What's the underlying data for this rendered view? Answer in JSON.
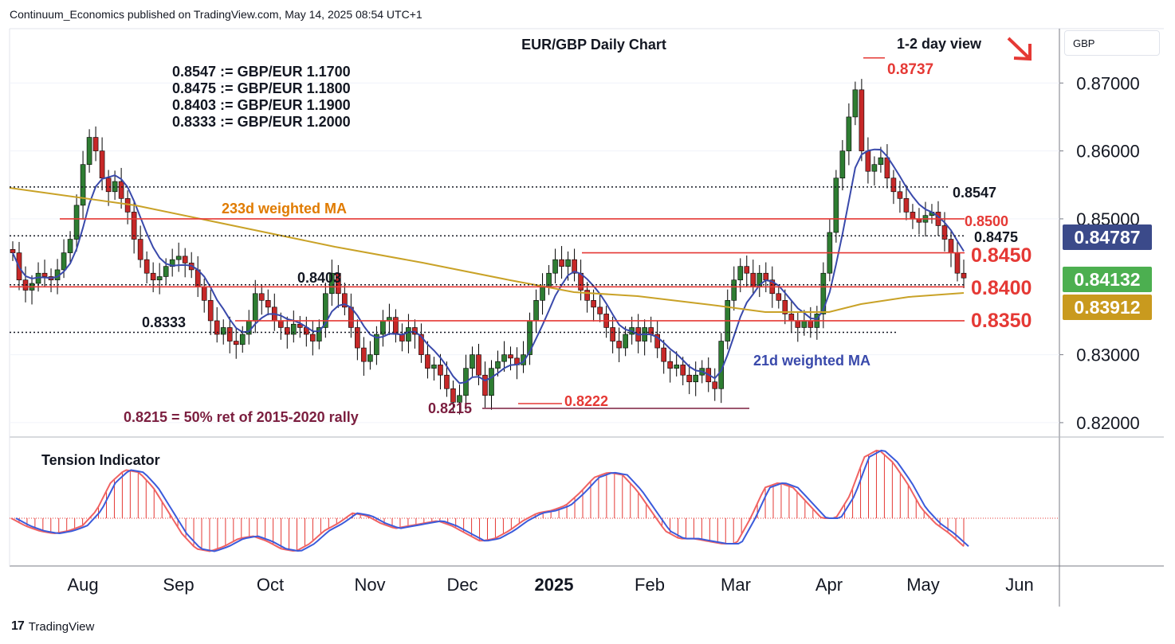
{
  "header": {
    "published": "Continuum_Economics published on TradingView.com, May 14, 2025 08:54 UTC+1"
  },
  "footer": {
    "brand": "TradingView",
    "logo": "17"
  },
  "price_scale": {
    "currency": "GBP"
  },
  "colors": {
    "up_candle": "#2e7d32",
    "down_candle": "#c62828",
    "ma21": "#3949ab",
    "ma233": "#c9a227",
    "levels_red": "#e53935",
    "current_price_badge": "#4caf50",
    "ma21_badge": "#3b4a8a",
    "ma233_badge": "#c99a1e",
    "fib_line": "#7b1e3f"
  },
  "chart_data": [
    {
      "type": "candlestick",
      "title": "EUR/GBP Daily Chart",
      "view_label": "1-2 day view",
      "view_arrow": "down-right-arrow",
      "x_ticks": [
        "Aug",
        "Sep",
        "Oct",
        "Nov",
        "Dec",
        "2025",
        "Feb",
        "Mar",
        "Apr",
        "May",
        "Jun"
      ],
      "y_ticks": [
        "0.87000",
        "0.86000",
        "0.85000",
        "0.83000",
        "0.82000"
      ],
      "ylim": [
        0.818,
        0.878
      ],
      "conversion_notes": [
        "0.8547 := GBP/EUR 1.1700",
        "0.8475 := GBP/EUR 1.1800",
        "0.8403 := GBP/EUR 1.1900",
        "0.8333 := GBP/EUR 1.2000"
      ],
      "levels": [
        {
          "label": "0.8547",
          "value": 0.8547,
          "style": "dotted"
        },
        {
          "label": "0.8500",
          "value": 0.85,
          "style": "solid-red"
        },
        {
          "label": "0.8475",
          "value": 0.8475,
          "style": "dotted"
        },
        {
          "label": "0.8450",
          "value": 0.845,
          "style": "solid-red"
        },
        {
          "label": "0.8403",
          "value": 0.8403,
          "style": "dotted"
        },
        {
          "label": "0.8400",
          "value": 0.84,
          "style": "solid-red"
        },
        {
          "label": "0.8350",
          "value": 0.835,
          "style": "solid-red"
        },
        {
          "label": "0.8333",
          "value": 0.8333,
          "style": "dotted"
        }
      ],
      "annotations": {
        "high": {
          "label": "0.8737",
          "value": 0.8737
        },
        "low": {
          "label": "0.8222",
          "value": 0.8222
        },
        "fib": {
          "label": "0.8215",
          "value": 0.8215,
          "note": "0.8215 = 50% ret of 2015-2020 rally"
        },
        "ma233_label": "233d weighted MA",
        "ma21_label": "21d weighted MA"
      },
      "badges": [
        {
          "label": "0.84787",
          "value": 0.84787,
          "kind": "ma21"
        },
        {
          "label": "0.84132",
          "value": 0.84132,
          "kind": "last"
        },
        {
          "label": "0.83912",
          "value": 0.83912,
          "kind": "ma233"
        }
      ],
      "series": [
        {
          "name": "EUR/GBP",
          "kind": "ohlc",
          "closes_approx": [
            0.845,
            0.841,
            0.8395,
            0.8405,
            0.842,
            0.8415,
            0.841,
            0.8425,
            0.845,
            0.847,
            0.852,
            0.858,
            0.862,
            0.86,
            0.856,
            0.854,
            0.8555,
            0.853,
            0.851,
            0.847,
            0.844,
            0.842,
            0.841,
            0.8415,
            0.843,
            0.844,
            0.8445,
            0.8435,
            0.8425,
            0.84,
            0.838,
            0.835,
            0.833,
            0.834,
            0.832,
            0.8315,
            0.833,
            0.835,
            0.839,
            0.838,
            0.837,
            0.835,
            0.834,
            0.833,
            0.8345,
            0.834,
            0.833,
            0.832,
            0.834,
            0.839,
            0.842,
            0.839,
            0.837,
            0.834,
            0.831,
            0.829,
            0.83,
            0.833,
            0.835,
            0.8355,
            0.833,
            0.832,
            0.834,
            0.833,
            0.83,
            0.828,
            0.8285,
            0.827,
            0.825,
            0.823,
            0.824,
            0.828,
            0.83,
            0.827,
            0.824,
            0.828,
            0.829,
            0.83,
            0.8295,
            0.8285,
            0.83,
            0.835,
            0.838,
            0.84,
            0.842,
            0.844,
            0.843,
            0.844,
            0.842,
            0.8395,
            0.838,
            0.837,
            0.836,
            0.834,
            0.832,
            0.831,
            0.833,
            0.834,
            0.832,
            0.834,
            0.833,
            0.831,
            0.829,
            0.828,
            0.8285,
            0.827,
            0.826,
            0.827,
            0.828,
            0.826,
            0.825,
            0.832,
            0.838,
            0.841,
            0.843,
            0.842,
            0.84,
            0.842,
            0.841,
            0.839,
            0.838,
            0.836,
            0.835,
            0.834,
            0.835,
            0.834,
            0.836,
            0.842,
            0.848,
            0.856,
            0.86,
            0.865,
            0.869,
            0.86,
            0.857,
            0.858,
            0.859,
            0.856,
            0.854,
            0.853,
            0.851,
            0.85,
            0.8495,
            0.8505,
            0.851,
            0.849,
            0.847,
            0.845,
            0.842,
            0.8413
          ]
        },
        {
          "name": "21d weighted MA",
          "kind": "line"
        },
        {
          "name": "233d weighted MA",
          "kind": "line"
        }
      ]
    },
    {
      "type": "area",
      "title": "Tension Indicator",
      "x_ticks": [
        "Aug",
        "Sep",
        "Oct",
        "Nov",
        "Dec",
        "2025",
        "Feb",
        "Mar",
        "Apr",
        "May",
        "Jun"
      ],
      "values_approx": [
        0.0,
        -0.3,
        -0.5,
        -0.6,
        -0.5,
        -0.3,
        0.3,
        1.4,
        1.9,
        1.8,
        1.2,
        0.3,
        -0.6,
        -1.2,
        -1.3,
        -1.1,
        -0.8,
        -0.7,
        -0.9,
        -1.2,
        -1.3,
        -1.0,
        -0.5,
        -0.2,
        0.2,
        0.1,
        -0.2,
        -0.4,
        -0.3,
        -0.2,
        -0.1,
        -0.3,
        -0.6,
        -0.9,
        -0.8,
        -0.5,
        -0.1,
        0.2,
        0.3,
        0.5,
        1.0,
        1.6,
        1.8,
        1.7,
        1.1,
        0.3,
        -0.5,
        -0.8,
        -0.8,
        -0.9,
        -1.0,
        -1.0,
        0.0,
        1.2,
        1.4,
        1.2,
        0.6,
        0.0,
        0.0,
        0.9,
        2.4,
        2.7,
        2.2,
        1.4,
        0.4,
        -0.2,
        -0.6,
        -1.1
      ]
    }
  ]
}
